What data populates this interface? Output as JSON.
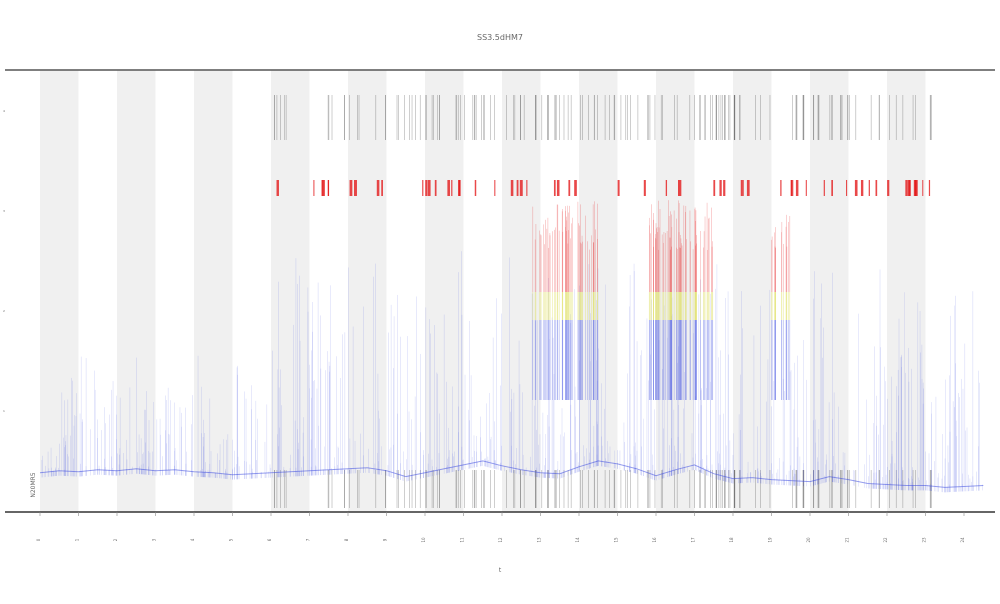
{
  "chart_data": {
    "type": "line",
    "title": "SS3.5dHM7",
    "xlabel": "t",
    "ylabel": "",
    "corner_label": "N20MR5",
    "x_ticks": [
      "0",
      "1",
      "2",
      "3",
      "4",
      "5",
      "6",
      "7",
      "8",
      "9",
      "10",
      "11",
      "12",
      "13",
      "14",
      "15",
      "16",
      "17",
      "18",
      "19",
      "20",
      "21",
      "22",
      "23",
      "24"
    ],
    "y_ticks": [
      "1",
      "2",
      "3",
      "4"
    ],
    "shaded_bands": [
      0,
      2,
      4,
      6,
      8,
      10,
      12,
      14,
      16,
      18,
      20,
      22
    ],
    "grid": false,
    "legend": "none",
    "colors": {
      "band": "#f0f0f0",
      "trace": "#3f4fe0",
      "marker_red": "#e41a1c",
      "marker_yellow": "#dede60",
      "tick_marks": "#333333",
      "frame": "#555555"
    },
    "series": [
      {
        "x": [
          0,
          0.5,
          1,
          1.5,
          2,
          2.5,
          3,
          3.5,
          4,
          4.5,
          5,
          5.5,
          6,
          6.5,
          7,
          7.5,
          8,
          8.5,
          9,
          9.5,
          10,
          10.5,
          11,
          11.5,
          12,
          12.5,
          13,
          13.5,
          14,
          14.5,
          15,
          15.5,
          16,
          16.5,
          17,
          17.5,
          18,
          18.5,
          19,
          19.5,
          20,
          20.5,
          21,
          21.5,
          22,
          22.5,
          23,
          23.5,
          24,
          24.5
        ],
        "y": [
          0.4,
          0.42,
          0.41,
          0.43,
          0.42,
          0.44,
          0.42,
          0.43,
          0.41,
          0.4,
          0.38,
          0.39,
          0.4,
          0.41,
          0.42,
          0.43,
          0.44,
          0.45,
          0.42,
          0.36,
          0.4,
          0.44,
          0.48,
          0.52,
          0.47,
          0.43,
          0.4,
          0.39,
          0.46,
          0.52,
          0.49,
          0.44,
          0.37,
          0.43,
          0.48,
          0.39,
          0.34,
          0.35,
          0.33,
          0.32,
          0.31,
          0.36,
          0.33,
          0.29,
          0.28,
          0.27,
          0.27,
          0.25,
          0.26,
          0.27
        ]
      }
    ],
    "ylim": [
      0,
      4.5
    ],
    "xlim": [
      0,
      24.5
    ]
  }
}
